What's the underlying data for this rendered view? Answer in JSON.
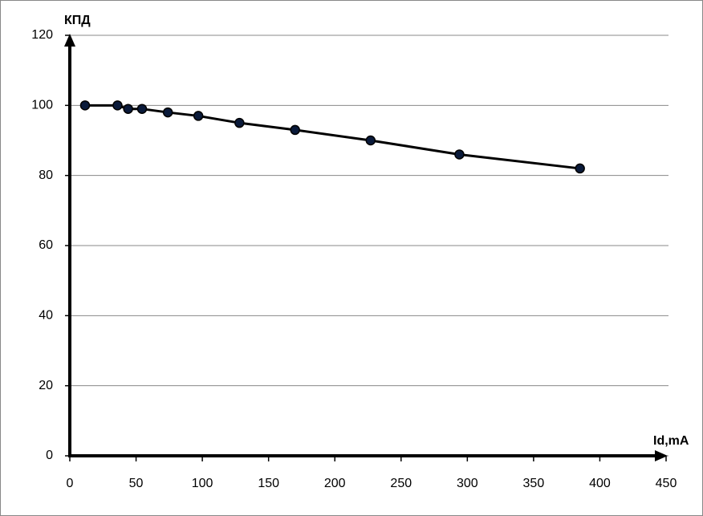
{
  "chart_data": {
    "type": "line",
    "x_label": "Id,mA",
    "y_label": "КПД",
    "x": [
      11.5,
      36,
      44,
      54.5,
      74,
      97,
      128,
      170,
      227,
      294,
      385
    ],
    "series": [
      {
        "color": "#000000",
        "values": [
          100,
          100,
          99,
          99,
          98,
          97,
          95,
          93,
          90,
          86,
          82
        ]
      }
    ],
    "xlim": [
      0,
      450
    ],
    "xticks": [
      0,
      50,
      100,
      150,
      200,
      250,
      300,
      350,
      400,
      450
    ],
    "ylim": [
      0,
      120
    ],
    "yticks": [
      0,
      20,
      40,
      60,
      80,
      100,
      120
    ],
    "grid": true
  }
}
